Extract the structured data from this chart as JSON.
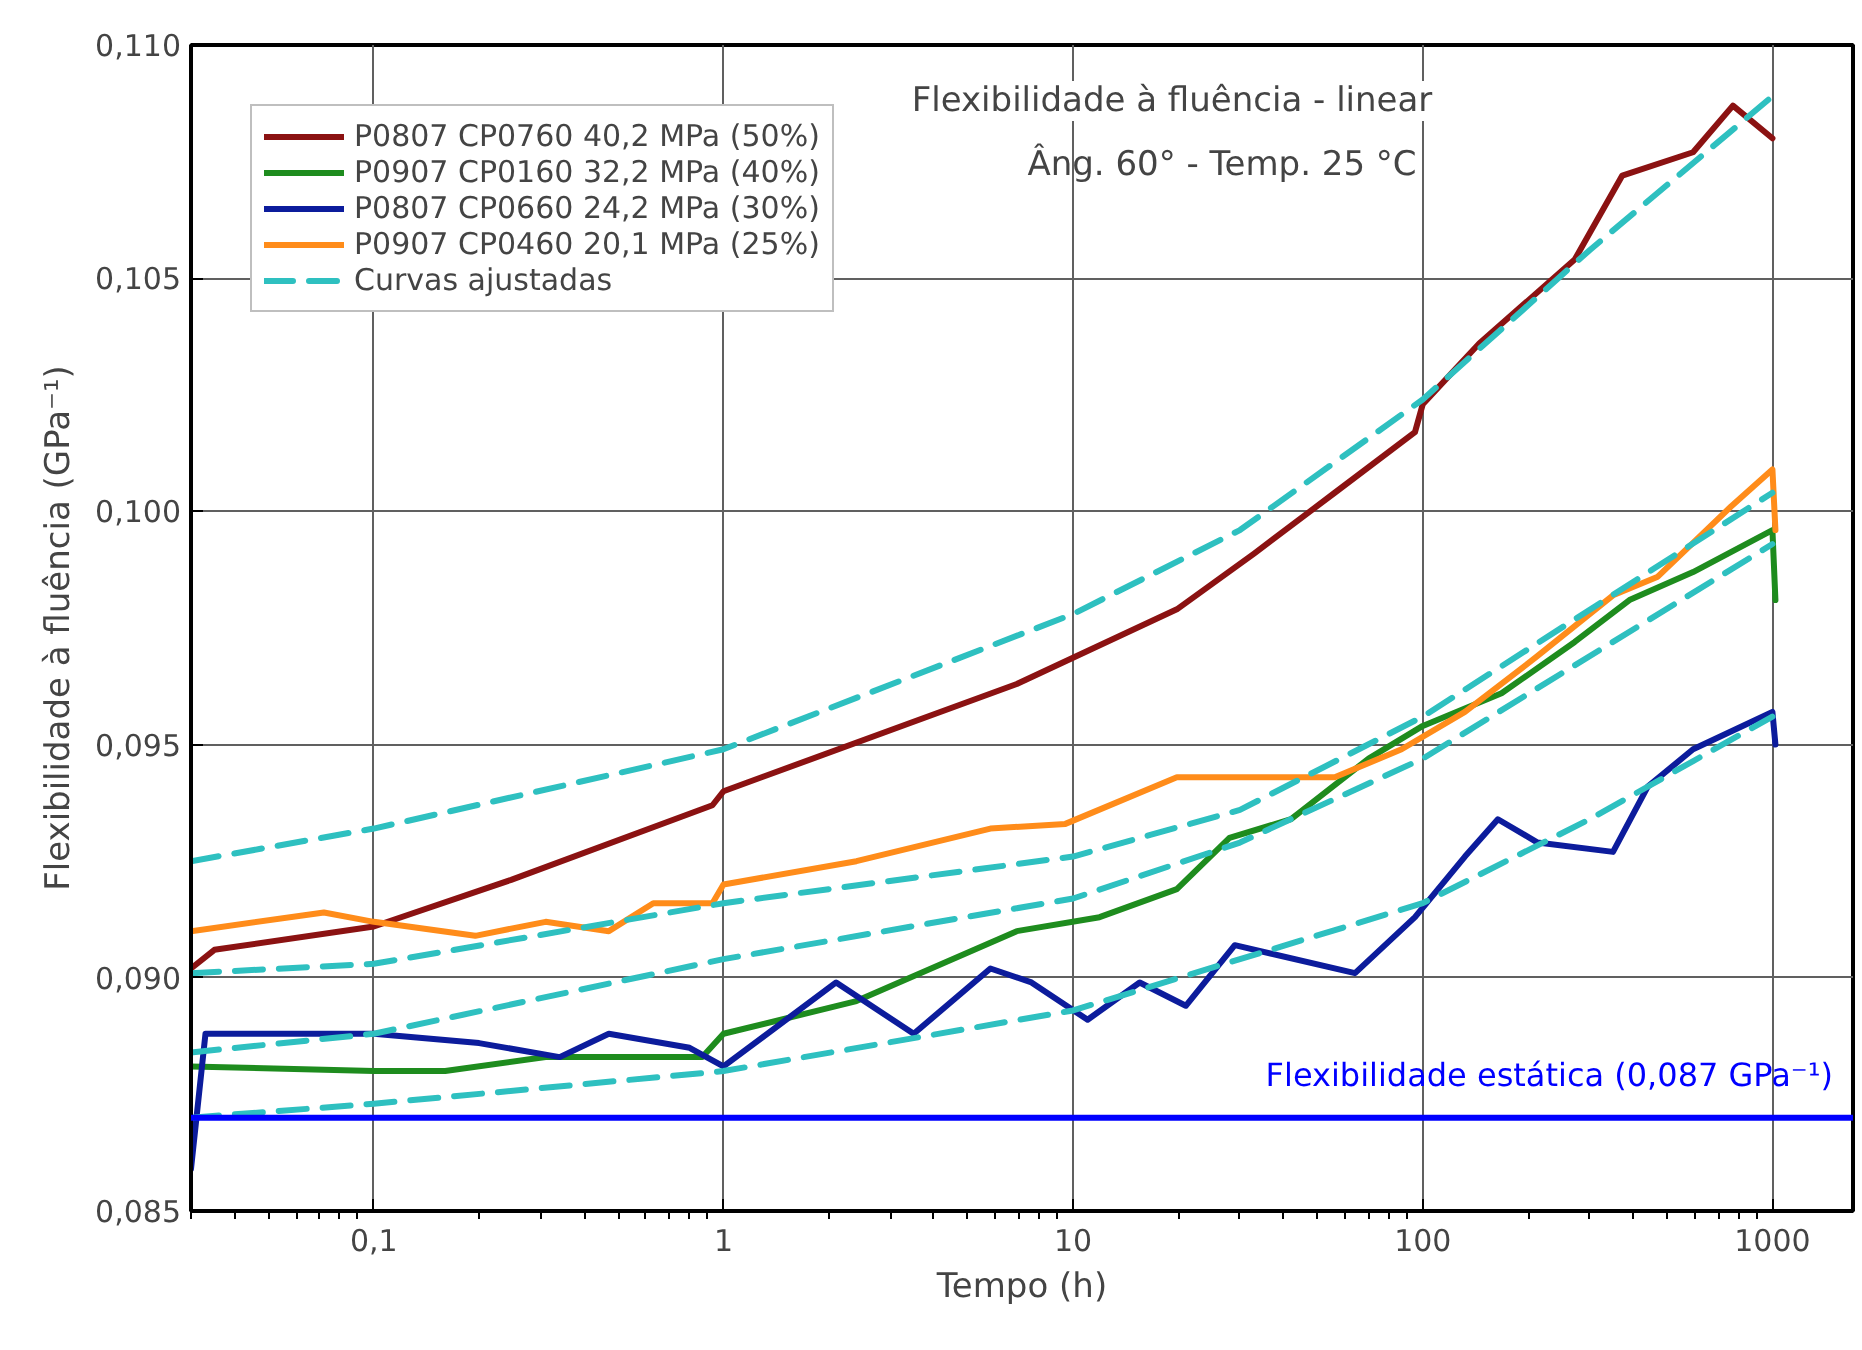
{
  "chart_data": {
    "type": "line",
    "title": "Flexibilidade à fluência - linear",
    "subtitle": "Âng. 60° - Temp. 25 °C",
    "xlabel": "Tempo (h)",
    "ylabel": "Flexibilidade à fluência (GPa⁻¹)",
    "log": "x",
    "xlim": [
      0.03,
      1700
    ],
    "ylim": [
      0.085,
      0.11
    ],
    "xticks": [
      {
        "value": 0.1,
        "label": "0,1"
      },
      1,
      10,
      100,
      1000
    ],
    "yticks": [
      {
        "value": 0.085,
        "label": "0,085"
      },
      {
        "value": 0.09,
        "label": "0,090"
      },
      {
        "value": 0.095,
        "label": "0,095"
      },
      {
        "value": 0.1,
        "label": "0,100"
      },
      {
        "value": 0.105,
        "label": "0,105"
      },
      {
        "value": 0.11,
        "label": "0,110"
      }
    ],
    "grid": true,
    "legend": "top left",
    "line_style": "solid",
    "series": [
      {
        "name": "P0807 CP0760 40,2 MPa (50%)",
        "color": "#8b1212",
        "x": [
          0.03,
          0.035,
          0.1,
          0.247,
          0.93,
          1,
          6.9,
          19.8,
          33,
          56,
          95,
          100,
          145,
          272,
          372,
          593,
          771,
          1000
        ],
        "values": [
          0.0902,
          0.0906,
          0.0911,
          0.0921,
          0.0937,
          0.094,
          0.0963,
          0.0979,
          0.0991,
          0.1004,
          0.1017,
          0.1023,
          0.1036,
          0.1054,
          0.1072,
          0.1077,
          0.1087,
          0.108
        ]
      },
      {
        "name": "P0907 CP0160 32,2 MPa (40%)",
        "color": "#1e8c1e",
        "x": [
          0.03,
          0.1,
          0.16,
          0.31,
          0.87,
          1,
          2.4,
          6.9,
          11.9,
          19.8,
          28,
          42,
          70,
          100,
          168,
          272,
          390,
          593,
          1000,
          1020
        ],
        "values": [
          0.0881,
          0.088,
          0.088,
          0.0883,
          0.0883,
          0.0888,
          0.0895,
          0.091,
          0.0913,
          0.0919,
          0.093,
          0.0934,
          0.0947,
          0.0954,
          0.0961,
          0.0972,
          0.0981,
          0.0987,
          0.0996,
          0.0981
        ]
      },
      {
        "name": "P0807 CP0660 24,2 MPa (30%)",
        "color": "#0c1c9c",
        "x": [
          0.03,
          0.033,
          0.1,
          0.2,
          0.34,
          0.47,
          0.8,
          1,
          2.1,
          3.5,
          5.8,
          7.6,
          11,
          15.5,
          21,
          29,
          64,
          95,
          132,
          164,
          213,
          350,
          440,
          593,
          1000,
          1020
        ],
        "values": [
          0.0859,
          0.0888,
          0.0888,
          0.0886,
          0.0883,
          0.0888,
          0.0885,
          0.0881,
          0.0899,
          0.0888,
          0.0902,
          0.0899,
          0.0891,
          0.0899,
          0.0894,
          0.0907,
          0.0901,
          0.0913,
          0.0926,
          0.0934,
          0.0929,
          0.0927,
          0.0941,
          0.0949,
          0.0957,
          0.095
        ]
      },
      {
        "name": "P0907 CP0460 20,1 MPa (25%)",
        "color": "#ff8c1a",
        "x": [
          0.03,
          0.072,
          0.1,
          0.195,
          0.31,
          0.47,
          0.63,
          0.93,
          1,
          2.4,
          5.8,
          9.5,
          19.8,
          33,
          56,
          87,
          132,
          213,
          350,
          470,
          760,
          1000,
          1020
        ],
        "values": [
          0.091,
          0.0914,
          0.0912,
          0.0909,
          0.0912,
          0.091,
          0.0916,
          0.0916,
          0.092,
          0.0925,
          0.0932,
          0.0933,
          0.0943,
          0.0943,
          0.0943,
          0.0949,
          0.0957,
          0.0969,
          0.0982,
          0.0986,
          0.1001,
          0.1009,
          0.0996
        ]
      },
      {
        "name": "Curvas ajustadas",
        "color": "#2ec0c0",
        "line_style": "dashed",
        "x": [
          0.03,
          0.1,
          1,
          10,
          30,
          100,
          300,
          1000
        ],
        "values": [
          0.0925,
          0.0932,
          0.0949,
          0.0978,
          0.0996,
          0.1024,
          0.1056,
          0.1089
        ]
      },
      {
        "color": "#2ec0c0",
        "line_style": "dashed",
        "x": [
          0.03,
          0.1,
          1,
          10,
          30,
          100,
          1000
        ],
        "values": [
          0.0901,
          0.0903,
          0.0916,
          0.0926,
          0.0936,
          0.0956,
          0.1004
        ]
      },
      {
        "color": "#2ec0c0",
        "line_style": "dashed",
        "x": [
          0.03,
          0.1,
          1,
          10,
          30,
          100,
          1000
        ],
        "values": [
          0.0884,
          0.0888,
          0.0904,
          0.0917,
          0.0929,
          0.0947,
          0.0993
        ]
      },
      {
        "color": "#2ec0c0",
        "line_style": "dashed",
        "x": [
          0.03,
          0.1,
          1,
          10,
          30,
          100,
          300,
          1000
        ],
        "values": [
          0.087,
          0.0873,
          0.088,
          0.0893,
          0.0904,
          0.0916,
          0.0934,
          0.0956
        ]
      }
    ],
    "ref_lines": [
      {
        "axis": "y",
        "value": 0.087,
        "label": "Flexibilidade estática (0,087 GPa⁻¹)",
        "color": "#0000ff"
      }
    ]
  }
}
